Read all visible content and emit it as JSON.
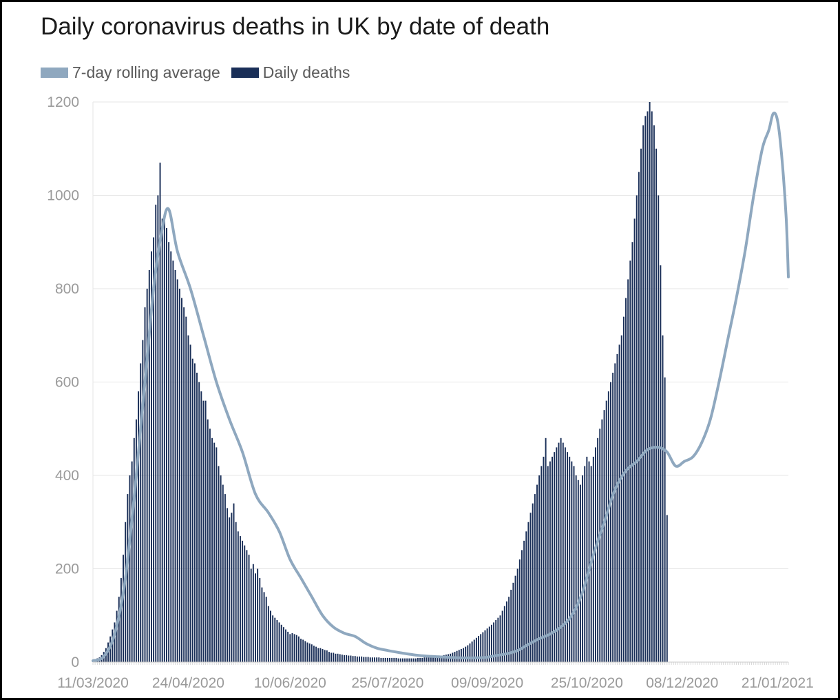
{
  "chart_data": {
    "type": "bar",
    "title": "Daily coronavirus deaths in UK by date of death",
    "xlabel": "",
    "ylabel": "",
    "x_start": "2020-03-11",
    "x_end": "2021-01-26",
    "ylim": [
      0,
      1200
    ],
    "yticks": [
      0,
      200,
      400,
      600,
      800,
      1000,
      1200
    ],
    "xtick_labels": [
      "11/03/2020",
      "24/04/2020",
      "10/06/2020",
      "25/07/2020",
      "09/09/2020",
      "25/10/2020",
      "08/12/2020",
      "21/01/2021"
    ],
    "grid": true,
    "legend_position": "top-left",
    "series": [
      {
        "name": "7-day rolling average",
        "type": "line",
        "color": "#8fa8bf",
        "points": [
          [
            "2020-03-11",
            3
          ],
          [
            "2020-03-16",
            12
          ],
          [
            "2020-03-21",
            60
          ],
          [
            "2020-03-26",
            180
          ],
          [
            "2020-03-31",
            400
          ],
          [
            "2020-04-04",
            600
          ],
          [
            "2020-04-08",
            800
          ],
          [
            "2020-04-12",
            930
          ],
          [
            "2020-04-15",
            970
          ],
          [
            "2020-04-19",
            880
          ],
          [
            "2020-04-25",
            800
          ],
          [
            "2020-05-01",
            700
          ],
          [
            "2020-05-07",
            600
          ],
          [
            "2020-05-13",
            520
          ],
          [
            "2020-05-19",
            450
          ],
          [
            "2020-05-25",
            360
          ],
          [
            "2020-05-31",
            320
          ],
          [
            "2020-06-05",
            280
          ],
          [
            "2020-06-10",
            220
          ],
          [
            "2020-06-15",
            180
          ],
          [
            "2020-06-20",
            140
          ],
          [
            "2020-06-25",
            100
          ],
          [
            "2020-06-30",
            75
          ],
          [
            "2020-07-05",
            62
          ],
          [
            "2020-07-10",
            55
          ],
          [
            "2020-07-15",
            40
          ],
          [
            "2020-07-20",
            30
          ],
          [
            "2020-07-25",
            25
          ],
          [
            "2020-07-31",
            20
          ],
          [
            "2020-08-09",
            14
          ],
          [
            "2020-08-19",
            11
          ],
          [
            "2020-08-29",
            9
          ],
          [
            "2020-09-08",
            10
          ],
          [
            "2020-09-13",
            14
          ],
          [
            "2020-09-18",
            18
          ],
          [
            "2020-09-23",
            25
          ],
          [
            "2020-09-28",
            38
          ],
          [
            "2020-10-03",
            50
          ],
          [
            "2020-10-08",
            60
          ],
          [
            "2020-10-13",
            75
          ],
          [
            "2020-10-18",
            100
          ],
          [
            "2020-10-23",
            150
          ],
          [
            "2020-10-28",
            230
          ],
          [
            "2020-11-02",
            300
          ],
          [
            "2020-11-07",
            370
          ],
          [
            "2020-11-12",
            410
          ],
          [
            "2020-11-17",
            430
          ],
          [
            "2020-11-22",
            455
          ],
          [
            "2020-11-27",
            460
          ],
          [
            "2020-12-01",
            450
          ],
          [
            "2020-12-05",
            420
          ],
          [
            "2020-12-09",
            430
          ],
          [
            "2020-12-13",
            440
          ],
          [
            "2020-12-17",
            470
          ],
          [
            "2020-12-21",
            520
          ],
          [
            "2020-12-25",
            600
          ],
          [
            "2020-12-29",
            690
          ],
          [
            "2021-01-02",
            780
          ],
          [
            "2021-01-06",
            880
          ],
          [
            "2021-01-10",
            1000
          ],
          [
            "2021-01-14",
            1100
          ],
          [
            "2021-01-17",
            1140
          ],
          [
            "2021-01-19",
            1175
          ],
          [
            "2021-01-21",
            1160
          ],
          [
            "2021-01-23",
            1080
          ],
          [
            "2021-01-25",
            950
          ],
          [
            "2021-01-26",
            825
          ]
        ]
      },
      {
        "name": "Daily deaths",
        "type": "bar",
        "color": "#1a2f58",
        "start_date": "2020-03-11",
        "values": [
          4,
          6,
          8,
          10,
          15,
          22,
          30,
          42,
          55,
          70,
          85,
          110,
          140,
          180,
          230,
          300,
          360,
          400,
          430,
          480,
          520,
          580,
          640,
          690,
          760,
          800,
          840,
          880,
          910,
          980,
          1000,
          1070,
          950,
          960,
          930,
          900,
          880,
          860,
          840,
          820,
          800,
          780,
          760,
          740,
          700,
          680,
          650,
          640,
          620,
          600,
          580,
          560,
          560,
          520,
          500,
          480,
          470,
          460,
          420,
          400,
          380,
          360,
          330,
          310,
          320,
          340,
          300,
          280,
          270,
          260,
          250,
          240,
          230,
          200,
          210,
          190,
          200,
          180,
          160,
          150,
          140,
          120,
          110,
          100,
          95,
          90,
          85,
          80,
          75,
          70,
          65,
          60,
          62,
          60,
          58,
          55,
          50,
          48,
          45,
          42,
          40,
          38,
          35,
          33,
          30,
          30,
          28,
          26,
          25,
          22,
          20,
          20,
          18,
          18,
          17,
          16,
          15,
          15,
          14,
          14,
          13,
          13,
          12,
          12,
          12,
          11,
          11,
          11,
          10,
          10,
          10,
          10,
          10,
          9,
          9,
          9,
          9,
          9,
          9,
          9,
          9,
          8,
          8,
          8,
          8,
          8,
          8,
          8,
          8,
          8,
          9,
          9,
          9,
          10,
          10,
          10,
          11,
          11,
          12,
          13,
          13,
          14,
          15,
          16,
          17,
          18,
          20,
          22,
          24,
          26,
          28,
          30,
          33,
          36,
          40,
          44,
          48,
          52,
          56,
          60,
          64,
          68,
          72,
          76,
          80,
          85,
          90,
          95,
          100,
          110,
          120,
          130,
          140,
          155,
          170,
          185,
          200,
          220,
          240,
          260,
          280,
          300,
          320,
          340,
          360,
          380,
          400,
          420,
          440,
          480,
          420,
          430,
          440,
          450,
          460,
          470,
          480,
          470,
          460,
          450,
          440,
          430,
          420,
          400,
          390,
          380,
          400,
          420,
          440,
          430,
          420,
          440,
          460,
          480,
          500,
          520,
          540,
          560,
          580,
          600,
          620,
          640,
          660,
          680,
          700,
          740,
          780,
          820,
          860,
          900,
          950,
          1000,
          1050,
          1100,
          1150,
          1170,
          1180,
          1200,
          1180,
          1150,
          1100,
          1000,
          850,
          700,
          610,
          315
        ]
      }
    ]
  }
}
